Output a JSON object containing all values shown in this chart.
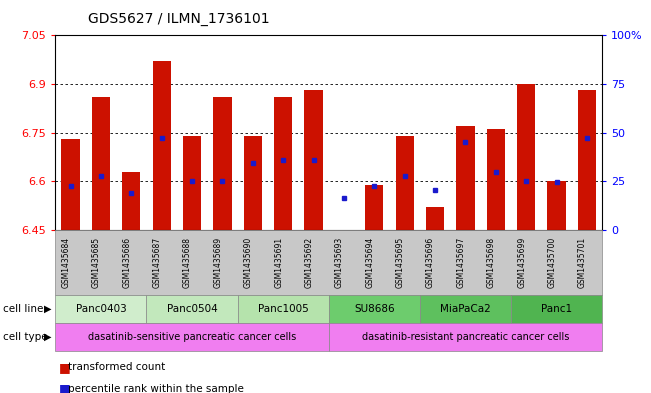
{
  "title": "GDS5627 / ILMN_1736101",
  "samples": [
    "GSM1435684",
    "GSM1435685",
    "GSM1435686",
    "GSM1435687",
    "GSM1435688",
    "GSM1435689",
    "GSM1435690",
    "GSM1435691",
    "GSM1435692",
    "GSM1435693",
    "GSM1435694",
    "GSM1435695",
    "GSM1435696",
    "GSM1435697",
    "GSM1435698",
    "GSM1435699",
    "GSM1435700",
    "GSM1435701"
  ],
  "bar_values": [
    6.73,
    6.86,
    6.63,
    6.97,
    6.74,
    6.86,
    6.74,
    6.86,
    6.88,
    6.45,
    6.59,
    6.74,
    6.52,
    6.77,
    6.76,
    6.9,
    6.6,
    6.88
  ],
  "blue_values": [
    6.585,
    6.615,
    6.565,
    6.735,
    6.6,
    6.6,
    6.655,
    6.665,
    6.665,
    6.548,
    6.585,
    6.615,
    6.572,
    6.72,
    6.628,
    6.6,
    6.598,
    6.735
  ],
  "ylim_left": [
    6.45,
    7.05
  ],
  "yticks_left": [
    6.45,
    6.6,
    6.75,
    6.9,
    7.05
  ],
  "ytick_labels_left": [
    "6.45",
    "6.6",
    "6.75",
    "6.9",
    "7.05"
  ],
  "yticks_right_vals": [
    0,
    25,
    50,
    75,
    100
  ],
  "ytick_labels_right": [
    "0",
    "25",
    "50",
    "75",
    "100%"
  ],
  "bar_color": "#cc1100",
  "blue_color": "#1a1acc",
  "cell_lines": [
    {
      "label": "Panc0403",
      "start": 0,
      "end": 3
    },
    {
      "label": "Panc0504",
      "start": 3,
      "end": 6
    },
    {
      "label": "Panc1005",
      "start": 6,
      "end": 9
    },
    {
      "label": "SU8686",
      "start": 9,
      "end": 12
    },
    {
      "label": "MiaPaCa2",
      "start": 12,
      "end": 15
    },
    {
      "label": "Panc1",
      "start": 15,
      "end": 18
    }
  ],
  "cell_line_colors": [
    "#d0edcc",
    "#c2e8bc",
    "#b5e3ac",
    "#6dcc6d",
    "#5ec05e",
    "#50b450"
  ],
  "cell_types": [
    {
      "label": "dasatinib-sensitive pancreatic cancer cells",
      "start": 0,
      "end": 9
    },
    {
      "label": "dasatinib-resistant pancreatic cancer cells",
      "start": 9,
      "end": 18
    }
  ],
  "cell_type_color": "#f07ef0",
  "legend_items": [
    {
      "label": "transformed count",
      "color": "#cc1100"
    },
    {
      "label": "percentile rank within the sample",
      "color": "#1a1acc"
    }
  ],
  "title_fontsize": 10,
  "bar_width": 0.6,
  "n_samples": 18
}
